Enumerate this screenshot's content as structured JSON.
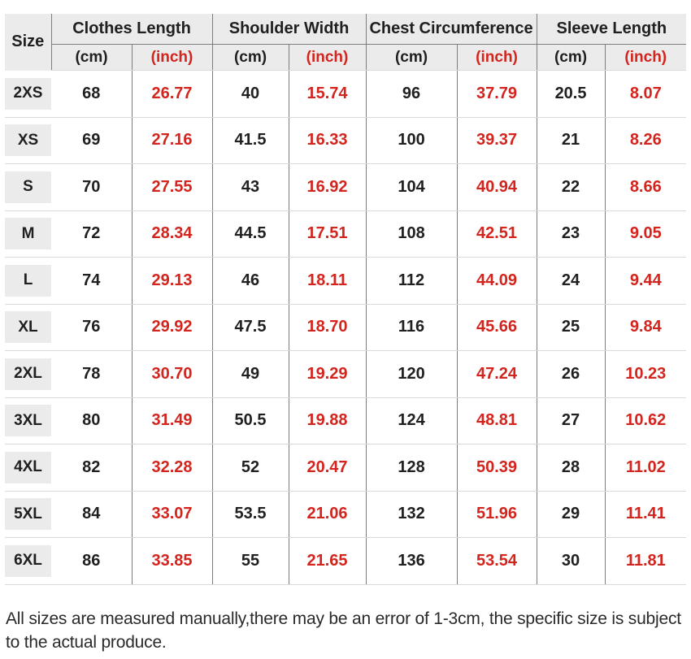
{
  "chart_data": {
    "type": "table",
    "size_column_header": "Size",
    "column_groups": [
      {
        "label": "Clothes Length",
        "units": [
          "(cm)",
          "(inch)"
        ]
      },
      {
        "label": "Shoulder Width",
        "units": [
          "(cm)",
          "(inch)"
        ]
      },
      {
        "label": "Chest Circumference",
        "units": [
          "(cm)",
          "(inch)"
        ]
      },
      {
        "label": "Sleeve Length",
        "units": [
          "(cm)",
          "(inch)"
        ]
      }
    ],
    "rows": [
      {
        "size": "2XS",
        "values": [
          "68",
          "26.77",
          "40",
          "15.74",
          "96",
          "37.79",
          "20.5",
          "8.07"
        ]
      },
      {
        "size": "XS",
        "values": [
          "69",
          "27.16",
          "41.5",
          "16.33",
          "100",
          "39.37",
          "21",
          "8.26"
        ]
      },
      {
        "size": "S",
        "values": [
          "70",
          "27.55",
          "43",
          "16.92",
          "104",
          "40.94",
          "22",
          "8.66"
        ]
      },
      {
        "size": "M",
        "values": [
          "72",
          "28.34",
          "44.5",
          "17.51",
          "108",
          "42.51",
          "23",
          "9.05"
        ]
      },
      {
        "size": "L",
        "values": [
          "74",
          "29.13",
          "46",
          "18.11",
          "112",
          "44.09",
          "24",
          "9.44"
        ]
      },
      {
        "size": "XL",
        "values": [
          "76",
          "29.92",
          "47.5",
          "18.70",
          "116",
          "45.66",
          "25",
          "9.84"
        ]
      },
      {
        "size": "2XL",
        "values": [
          "78",
          "30.70",
          "49",
          "19.29",
          "120",
          "47.24",
          "26",
          "10.23"
        ]
      },
      {
        "size": "3XL",
        "values": [
          "80",
          "31.49",
          "50.5",
          "19.88",
          "124",
          "48.81",
          "27",
          "10.62"
        ]
      },
      {
        "size": "4XL",
        "values": [
          "82",
          "32.28",
          "52",
          "20.47",
          "128",
          "50.39",
          "28",
          "11.02"
        ]
      },
      {
        "size": "5XL",
        "values": [
          "84",
          "33.07",
          "53.5",
          "21.06",
          "132",
          "51.96",
          "29",
          "11.41"
        ]
      },
      {
        "size": "6XL",
        "values": [
          "86",
          "33.85",
          "55",
          "21.65",
          "136",
          "53.54",
          "30",
          "11.81"
        ]
      }
    ]
  },
  "footer_note": "All sizes are measured manually,there may be an error of 1-3cm, the specific size is subject to the actual produce.",
  "colors": {
    "accent_red": "#d3241e",
    "header_bg": "#ebebeb",
    "grid_vertical": "#7e7e7e",
    "grid_horizontal": "#d9d9d9",
    "text_dark": "#202020",
    "footer_text": "#2a2a2a"
  }
}
